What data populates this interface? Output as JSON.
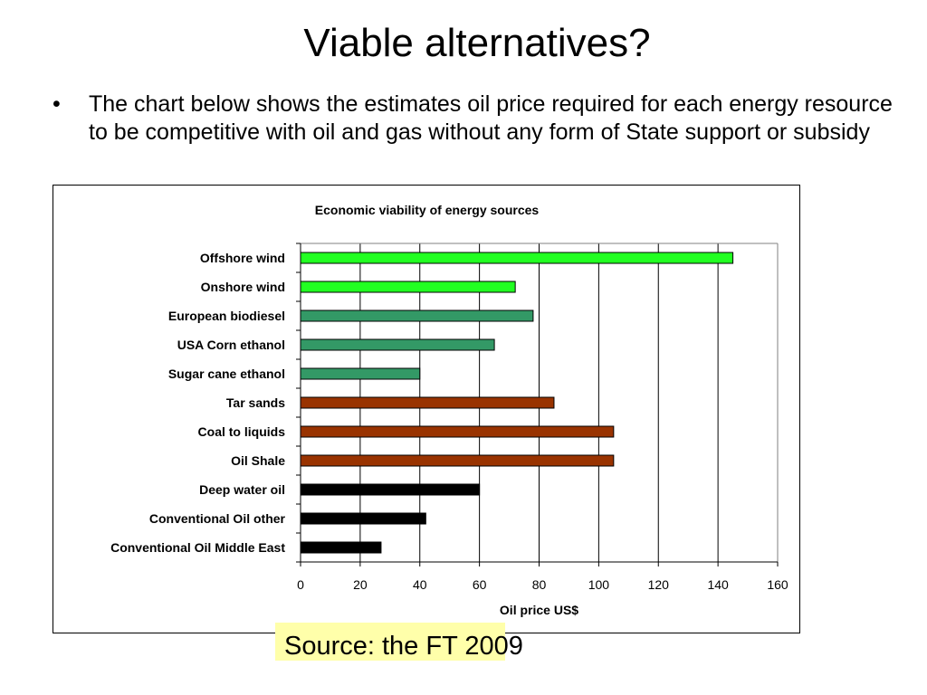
{
  "slide": {
    "title": "Viable alternatives?",
    "bullet_symbol": "•",
    "bullet_text": "The chart below shows the estimates oil price required for each energy resource to be competitive with oil and gas without any form of State support or subsidy",
    "source": "Source: the FT 2009",
    "source_highlight_color": "#ffffaa"
  },
  "chart_data": {
    "type": "bar",
    "orientation": "horizontal",
    "title": "Economic viability of energy sources",
    "xlabel": "Oil price US$",
    "ylabel": "",
    "xlim": [
      0,
      160
    ],
    "xticks": [
      0,
      20,
      40,
      60,
      80,
      100,
      120,
      140,
      160
    ],
    "grid": "vertical",
    "legend": "none",
    "categories": [
      "Offshore wind",
      "Onshore wind",
      "European biodiesel",
      "USA Corn ethanol",
      "Sugar cane ethanol",
      "Tar sands",
      "Coal to liquids",
      "Oil Shale",
      "Deep water oil",
      "Conventional Oil other",
      "Conventional Oil Middle East"
    ],
    "values": [
      145,
      72,
      78,
      65,
      40,
      85,
      105,
      105,
      60,
      42,
      27
    ],
    "colors": [
      "#22ff22",
      "#22ff22",
      "#339966",
      "#339966",
      "#339966",
      "#993300",
      "#993300",
      "#993300",
      "#000000",
      "#000000",
      "#000000"
    ]
  }
}
